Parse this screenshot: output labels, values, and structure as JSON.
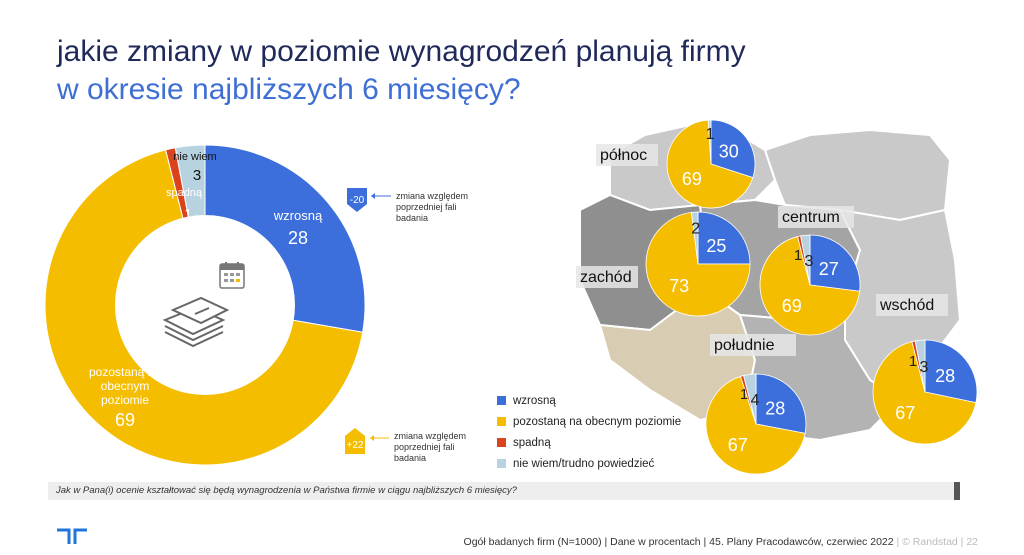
{
  "title_line1": "jakie zmiany w poziomie wynagrodzeń planują firmy",
  "title_line2": "w okresie najbliższych 6 miesięcy?",
  "colors": {
    "wzrosna": "#3c6fdc",
    "pozostana": "#f5bd00",
    "spadna": "#d9441c",
    "nie_wiem": "#b8d3e0"
  },
  "chart_data": [
    {
      "type": "pie",
      "variant": "donut",
      "slices": [
        {
          "key": "wzrosna",
          "label": "wzrosną",
          "value": 28
        },
        {
          "key": "pozostana",
          "label_lines": [
            "pozostaną na",
            "obecnym",
            "poziomie"
          ],
          "value": 69
        },
        {
          "key": "spadna",
          "label": "spadną",
          "value": 1
        },
        {
          "key": "nie_wiem",
          "label": "nie wiem",
          "value": 3
        }
      ],
      "annotations": [
        {
          "badge": "-20",
          "text_lines": [
            "zmiana względem",
            "poprzedniej fali",
            "badania"
          ]
        },
        {
          "badge": "+22",
          "text_lines": [
            "zmiana względem",
            "poprzedniej fali",
            "badania"
          ]
        }
      ]
    },
    {
      "type": "pie",
      "region": "północ",
      "values": {
        "wzrosna": 30,
        "pozostana": 69,
        "spadna": 0,
        "nie_wiem": 1
      },
      "labels": [
        "30",
        "69",
        "1"
      ]
    },
    {
      "type": "pie",
      "region": "zachód",
      "values": {
        "wzrosna": 25,
        "pozostana": 73,
        "spadna": 0,
        "nie_wiem": 2
      },
      "labels": [
        "25",
        "73",
        "2"
      ]
    },
    {
      "type": "pie",
      "region": "centrum",
      "values": {
        "wzrosna": 27,
        "pozostana": 69,
        "spadna": 1,
        "nie_wiem": 3
      },
      "labels": [
        "27",
        "69",
        "1",
        "3"
      ]
    },
    {
      "type": "pie",
      "region": "wschód",
      "values": {
        "wzrosna": 28,
        "pozostana": 67,
        "spadna": 1,
        "nie_wiem": 3
      },
      "labels": [
        "28",
        "67",
        "1",
        "3"
      ]
    },
    {
      "type": "pie",
      "region": "południe",
      "values": {
        "wzrosna": 28,
        "pozostana": 67,
        "spadna": 1,
        "nie_wiem": 4
      },
      "labels": [
        "28",
        "67",
        "1",
        "4"
      ]
    }
  ],
  "legend": [
    {
      "key": "wzrosna",
      "label": "wzrosną"
    },
    {
      "key": "pozostana",
      "label": "pozostaną na obecnym poziomie"
    },
    {
      "key": "spadna",
      "label": "spadną"
    },
    {
      "key": "nie_wiem",
      "label": "nie wiem/trudno powiedzieć"
    }
  ],
  "question": "Jak w Pana(i) ocenie kształtować się będą wynagrodzenia w Państwa firmie w ciągu najbliższych 6 miesięcy?",
  "footer": {
    "main": "Ogół badanych firm (N=1000)  |  Dane w procentach  |  45. Plany Pracodawców, czerwiec 2022",
    "light": " |  © Randstad  |  22"
  },
  "icons": [
    "calendar-icon",
    "money-stack-icon",
    "randstad-logo-icon"
  ]
}
